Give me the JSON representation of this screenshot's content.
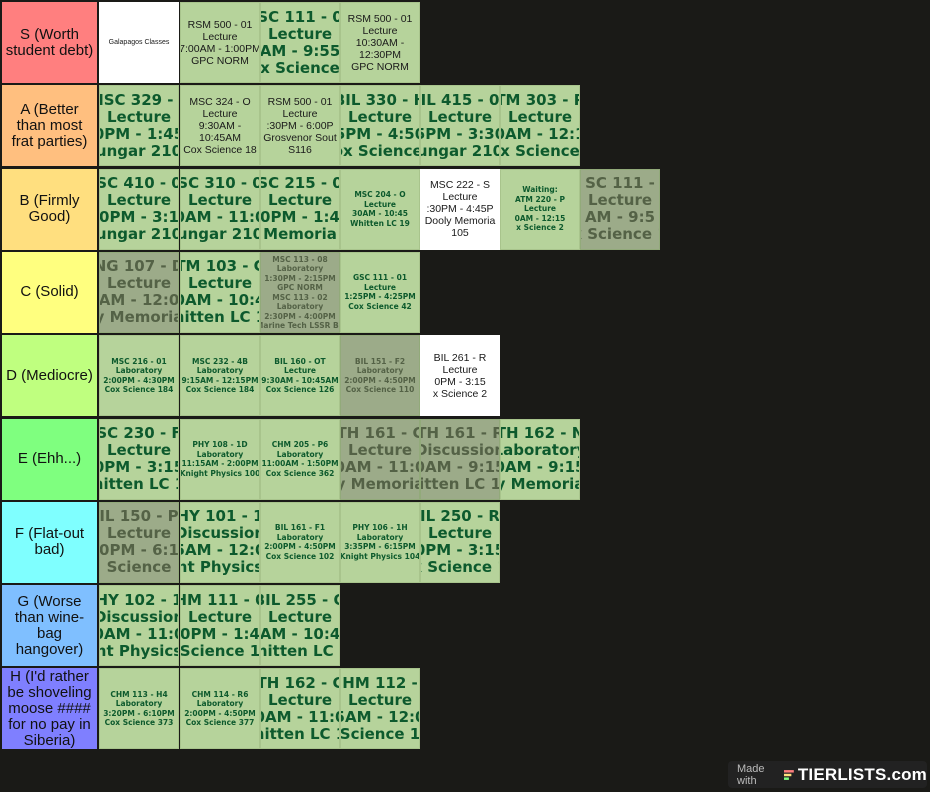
{
  "tiers": [
    {
      "label": "S (Worth student debt)",
      "color": "#ff7f7f",
      "items": [
        {
          "style": "white tiny",
          "lines": [
            "Galapagos Classes"
          ]
        },
        {
          "style": "green mid",
          "lines": [
            "RSM 500 - 01",
            "Lecture",
            "7:00AM - 1:00PM",
            "GPC NORM"
          ]
        },
        {
          "style": "green big",
          "lines": [
            "SC 111 - 0",
            "Lecture",
            "AM - 9:55",
            "x Science"
          ]
        },
        {
          "style": "green mid",
          "lines": [
            "RSM 500 - 01",
            "Lecture",
            "10:30AM -",
            "12:30PM",
            "GPC NORM"
          ]
        }
      ]
    },
    {
      "label": "A (Better than most frat parties)",
      "color": "#ffbf7f",
      "items": [
        {
          "style": "green big",
          "lines": [
            "MSC 329 - 0",
            "Lecture",
            "0PM - 1:45",
            "ungar 210"
          ]
        },
        {
          "style": "green mid",
          "lines": [
            "MSC 324 - O",
            "Lecture",
            "9:30AM -",
            "10:45AM",
            "Cox Science 18"
          ]
        },
        {
          "style": "green mid",
          "lines": [
            "RSM 500 - 01",
            "Lecture",
            ":30PM - 6:00P",
            "Grosvenor Sout",
            "S116"
          ]
        },
        {
          "style": "green big",
          "lines": [
            "BIL 330 - H",
            "Lecture",
            "5PM - 4:50",
            "Cox Science 1"
          ]
        },
        {
          "style": "green big",
          "lines": [
            "IL 415 - 0",
            "Lecture",
            "5PM - 3:30",
            "ungar 210"
          ]
        },
        {
          "style": "green big",
          "lines": [
            "TM 303 - P",
            "Lecture",
            "0AM - 12:1",
            "x Science"
          ]
        }
      ]
    },
    {
      "label": "B (Firmly Good)",
      "color": "#ffdf7f",
      "items": [
        {
          "style": "green big",
          "lines": [
            "SC 410 - 0",
            "Lecture",
            "0PM - 3:1",
            "ungar 210"
          ]
        },
        {
          "style": "green big",
          "lines": [
            "SC 310 - 0",
            "Lecture",
            "0AM - 11:0",
            "ungar 210"
          ]
        },
        {
          "style": "green big",
          "lines": [
            "SC 215 - 0",
            "Lecture",
            "0PM - 1:4",
            "Memoria"
          ]
        },
        {
          "style": "green small",
          "lines": [
            "MSC 204 - O",
            "Lecture",
            "30AM - 10:45",
            "Whitten LC 19"
          ]
        },
        {
          "style": "white mid",
          "lines": [
            "MSC 222 - S",
            "Lecture",
            ":30PM - 4:45P",
            "Dooly Memoria",
            "105"
          ]
        },
        {
          "style": "green small",
          "lines": [
            "Waiting:",
            "ATM 220 - P",
            "Lecture",
            "0AM - 12:15",
            "x Science 2"
          ]
        },
        {
          "style": "green big faded",
          "lines": [
            "SC 111 -",
            "Lecture",
            "AM - 9:5",
            "x Science 1"
          ]
        }
      ]
    },
    {
      "label": "C (Solid)",
      "color": "#ffff7f",
      "items": [
        {
          "style": "green big faded",
          "lines": [
            "NG 107 - D",
            "Lecture",
            "AM - 12:0",
            "y Memoria"
          ]
        },
        {
          "style": "green big",
          "lines": [
            "TM 103 - C",
            "Lecture",
            "0AM - 10:4",
            "hitten LC 1"
          ]
        },
        {
          "style": "green small faded split",
          "lines": [
            "MSC 113 - 08",
            "Laboratory",
            "1:30PM - 2:15PM",
            "GPC NORM",
            "MSC 113 - 02",
            "Laboratory",
            "2:30PM - 4:00PM",
            "Marine Tech LSSR Bd"
          ]
        },
        {
          "style": "green small",
          "lines": [
            "GSC 111 - 01",
            "Lecture",
            "1:25PM - 4:25PM",
            "Cox Science 42"
          ]
        }
      ]
    },
    {
      "label": "D (Mediocre)",
      "color": "#bfff7f",
      "items": [
        {
          "style": "green small",
          "lines": [
            "MSC 216 - 01",
            "Laboratory",
            "2:00PM - 4:30PM",
            "Cox Science 184"
          ]
        },
        {
          "style": "green small",
          "lines": [
            "MSC 232 - 4B",
            "Laboratory",
            "9:15AM - 12:15PM",
            "Cox Science 184"
          ]
        },
        {
          "style": "green small",
          "lines": [
            "BIL 160 - OT",
            "Lecture",
            "9:30AM - 10:45AM",
            "Cox Science 126"
          ]
        },
        {
          "style": "green small faded",
          "lines": [
            "BIL 151 - F2",
            "Laboratory",
            "2:00PM - 4:50PM",
            "Cox Science 110"
          ]
        },
        {
          "style": "white mid big",
          "lines": [
            "BIL 261 - R",
            "Lecture",
            "0PM - 3:15",
            "x Science 2"
          ]
        }
      ]
    },
    {
      "label": "E (Ehh...)",
      "color": "#7fff7f",
      "items": [
        {
          "style": "green big",
          "lines": [
            "SC 230 - F",
            "Lecture",
            "0PM - 3:15",
            "hitten LC 1"
          ]
        },
        {
          "style": "green small",
          "lines": [
            "PHY 108 - 1D",
            "Laboratory",
            "11:15AM - 2:00PM",
            "Knight Physics 100"
          ]
        },
        {
          "style": "green small",
          "lines": [
            "CHM 205 - P6",
            "Laboratory",
            "11:00AM - 1:50PM",
            "Cox Science 362"
          ]
        },
        {
          "style": "green big faded",
          "lines": [
            "TH 161 - C",
            "Lecture",
            "0AM - 11:0",
            "y Memoria"
          ]
        },
        {
          "style": "green big faded",
          "lines": [
            "TH 161 - R",
            "Discussion",
            "0AM - 9:15",
            "itten LC 1"
          ]
        },
        {
          "style": "green big",
          "lines": [
            "TH 162 - N",
            "Laboratory",
            "0AM - 9:15",
            "y Memoria"
          ]
        }
      ]
    },
    {
      "label": "F (Flat-out bad)",
      "color": "#7fffff",
      "items": [
        {
          "style": "green big faded",
          "lines": [
            "IL 150 - P",
            "Lecture",
            "0PM - 6:1",
            "Science"
          ]
        },
        {
          "style": "green big",
          "lines": [
            "HY 101 - 1",
            "Discussion",
            "5AM - 12:0",
            "ht Physics"
          ]
        },
        {
          "style": "green small",
          "lines": [
            "BIL 161 - F1",
            "Laboratory",
            "2:00PM - 4:50PM",
            "Cox Science 102"
          ]
        },
        {
          "style": "green small",
          "lines": [
            "PHY 106 - 1H",
            "Laboratory",
            "3:35PM - 6:15PM",
            "Knight Physics 104"
          ]
        },
        {
          "style": "green big",
          "lines": [
            "IL 250 - R",
            "Lecture",
            "0PM - 3:15",
            "x Science 1"
          ]
        }
      ]
    },
    {
      "label": "G (Worse than wine-bag hangover)",
      "color": "#7fbfff",
      "items": [
        {
          "style": "green big",
          "lines": [
            "HY 102 - 1",
            "Discussion",
            "0AM - 11:0",
            "ht Physics"
          ]
        },
        {
          "style": "green big",
          "lines": [
            "HM 111 - 0",
            "Lecture",
            "0PM - 1:4",
            "Science 1"
          ]
        },
        {
          "style": "green big",
          "lines": [
            "BIL 255 - O",
            "Lecture",
            "0AM - 10:45",
            "Whitten LC 11"
          ]
        }
      ]
    },
    {
      "label": "H (I'd rather be shoveling moose #### for no pay in Siberia)",
      "color": "#7f7fff",
      "items": [
        {
          "style": "green small",
          "lines": [
            "CHM 113 - H4",
            "Laboratory",
            "3:20PM - 6:10PM",
            "Cox Science 373"
          ]
        },
        {
          "style": "green small",
          "lines": [
            "CHM 114 - R6",
            "Laboratory",
            "2:00PM - 4:50PM",
            "Cox Science 377"
          ]
        },
        {
          "style": "green big",
          "lines": [
            "TH 162 - C",
            "Lecture",
            "0AM - 11:0",
            "hitten LC 1"
          ]
        },
        {
          "style": "green big",
          "lines": [
            "HM 112 -",
            "Lecture",
            "5AM - 12:0",
            "Science 1"
          ]
        }
      ]
    }
  ],
  "footer": {
    "made_with": "Made with",
    "brand": "TIERLISTS.com",
    "logo_icon": "tierlists-logo-icon"
  }
}
